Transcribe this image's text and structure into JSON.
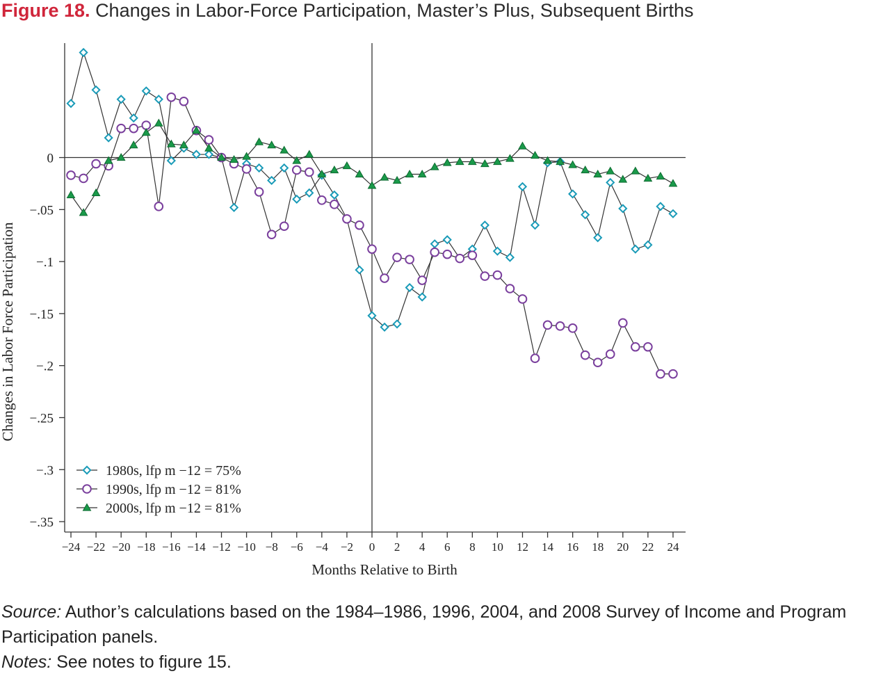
{
  "figure": {
    "number": "Figure 18.",
    "title": "Changes in Labor-Force Participation, Master’s Plus, Subsequent Births"
  },
  "footer": {
    "source_label": "Source:",
    "source_text": " Author’s calculations based on the 1984–1986, 1996, 2004, and 2008 Survey of Income and Program Participation panels.",
    "notes_label": "Notes:",
    "notes_text": " See notes to figure 15."
  },
  "chart_data": {
    "type": "line",
    "title": "",
    "xlabel": "Months Relative to Birth",
    "ylabel": "Changes in Labor Force Participation",
    "xlim": [
      -24.5,
      25
    ],
    "ylim": [
      -0.36,
      0.11
    ],
    "xticks": [
      -24,
      -22,
      -20,
      -18,
      -16,
      -14,
      -12,
      -10,
      -8,
      -6,
      -4,
      -2,
      0,
      2,
      4,
      6,
      8,
      10,
      12,
      14,
      16,
      18,
      20,
      22,
      24
    ],
    "xtick_labels": [
      "−24",
      "−22",
      "−20",
      "−18",
      "−16",
      "−14",
      "−12",
      "−10",
      "−8",
      "−6",
      "−4",
      "−2",
      "0",
      "2",
      "4",
      "6",
      "8",
      "10",
      "12",
      "14",
      "16",
      "18",
      "20",
      "22",
      "24"
    ],
    "yticks": [
      0,
      -0.05,
      -0.1,
      -0.15,
      -0.2,
      -0.25,
      -0.3,
      -0.35
    ],
    "ytick_labels": [
      "0",
      "−.05",
      "−.1",
      "−.15",
      "−.2",
      "−.25",
      "−.3",
      "−.35"
    ],
    "reference_lines": {
      "x": 0,
      "y": 0
    },
    "grid": false,
    "legend_position": "bottom-left",
    "x": [
      -24,
      -23,
      -22,
      -21,
      -20,
      -19,
      -18,
      -17,
      -16,
      -15,
      -14,
      -13,
      -12,
      -11,
      -10,
      -9,
      -8,
      -7,
      -6,
      -5,
      -4,
      -3,
      -2,
      -1,
      0,
      1,
      2,
      3,
      4,
      5,
      6,
      7,
      8,
      9,
      10,
      11,
      12,
      13,
      14,
      15,
      16,
      17,
      18,
      19,
      20,
      21,
      22,
      23,
      24
    ],
    "series": [
      {
        "name": "1980s, lfp m −12 = 75%",
        "marker": "diamond",
        "color": "#1a9bb8",
        "values": [
          0.052,
          0.101,
          0.065,
          0.019,
          0.056,
          0.038,
          0.064,
          0.056,
          -0.003,
          0.009,
          0.003,
          0.003,
          0,
          -0.048,
          -0.006,
          -0.01,
          -0.022,
          -0.01,
          -0.04,
          -0.034,
          -0.017,
          -0.036,
          -0.059,
          -0.108,
          -0.152,
          -0.163,
          -0.16,
          -0.125,
          -0.134,
          -0.083,
          -0.079,
          -0.097,
          -0.088,
          -0.065,
          -0.09,
          -0.096,
          -0.028,
          -0.065,
          -0.005,
          -0.004,
          -0.035,
          -0.055,
          -0.077,
          -0.024,
          -0.049,
          -0.088,
          -0.084,
          -0.047,
          -0.054
        ]
      },
      {
        "name": "1990s, lfp m −12 = 81%",
        "marker": "circle",
        "color": "#7a3f9d",
        "values": [
          -0.017,
          -0.02,
          -0.006,
          -0.008,
          0.028,
          0.028,
          0.031,
          -0.047,
          0.058,
          0.054,
          0.026,
          0.017,
          0,
          -0.006,
          -0.011,
          -0.033,
          -0.074,
          -0.066,
          -0.012,
          -0.014,
          -0.041,
          -0.045,
          -0.059,
          -0.065,
          -0.088,
          -0.116,
          -0.096,
          -0.098,
          -0.118,
          -0.091,
          -0.093,
          -0.097,
          -0.094,
          -0.114,
          -0.113,
          -0.126,
          -0.136,
          -0.193,
          -0.161,
          -0.162,
          -0.164,
          -0.19,
          -0.197,
          -0.189,
          -0.159,
          -0.182,
          -0.182,
          -0.208,
          -0.208
        ]
      },
      {
        "name": "2000s, lfp m −12 = 81%",
        "marker": "triangle",
        "color": "#1a9a4a",
        "values": [
          -0.036,
          -0.053,
          -0.034,
          -0.003,
          0,
          0.012,
          0.024,
          0.033,
          0.013,
          0.012,
          0.026,
          0.009,
          0,
          -0.002,
          0.001,
          0.015,
          0.012,
          0.007,
          -0.003,
          0.003,
          -0.016,
          -0.012,
          -0.008,
          -0.016,
          -0.027,
          -0.019,
          -0.022,
          -0.016,
          -0.016,
          -0.009,
          -0.005,
          -0.004,
          -0.004,
          -0.006,
          -0.004,
          -0.001,
          0.011,
          0.002,
          -0.003,
          -0.004,
          -0.007,
          -0.012,
          -0.016,
          -0.013,
          -0.021,
          -0.013,
          -0.02,
          -0.018,
          -0.025
        ]
      }
    ]
  }
}
